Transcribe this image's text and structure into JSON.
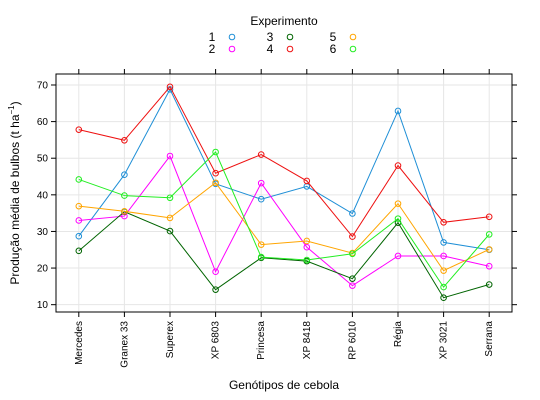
{
  "chart_data": {
    "type": "line",
    "legend_title": "Experimento",
    "legend_position": "top",
    "categories": [
      "Mercedes",
      "Granex 33",
      "Superex",
      "XP 6803",
      "Princesa",
      "XP 8418",
      "RP 6010",
      "Régia",
      "XP 3021",
      "Serrana"
    ],
    "series": [
      {
        "name": "1",
        "color": "#1f8fd6",
        "values": [
          28.7,
          45.5,
          68.8,
          43.0,
          38.8,
          42.3,
          34.9,
          62.9,
          27.0,
          25.0
        ]
      },
      {
        "name": "2",
        "color": "#ff00ff",
        "values": [
          33.0,
          34.2,
          50.6,
          19.0,
          43.2,
          25.7,
          15.2,
          23.3,
          23.3,
          20.5
        ]
      },
      {
        "name": "3",
        "color": "#006400",
        "values": [
          24.7,
          35.4,
          30.1,
          14.1,
          22.8,
          21.9,
          17.1,
          32.4,
          11.9,
          15.5
        ]
      },
      {
        "name": "4",
        "color": "#ee1111",
        "values": [
          57.8,
          54.9,
          69.5,
          45.9,
          51.0,
          43.8,
          28.6,
          48.0,
          32.5,
          34.0
        ]
      },
      {
        "name": "5",
        "color": "#ffa500",
        "values": [
          36.9,
          35.5,
          33.7,
          43.3,
          26.4,
          27.4,
          24.1,
          37.6,
          19.3,
          25.1
        ]
      },
      {
        "name": "6",
        "color": "#22ee22",
        "values": [
          44.2,
          39.8,
          39.2,
          51.7,
          23.0,
          22.2,
          23.9,
          33.5,
          14.8,
          29.2
        ]
      }
    ],
    "xlabel": "Genótipos de cebola",
    "ylabel_main": "Produção média de bulbos (t ha",
    "ylabel_sup": "−1",
    "ylabel_close": ")",
    "yticks": [
      10,
      20,
      30,
      40,
      50,
      60,
      70
    ],
    "ylim": [
      8,
      73
    ],
    "grid": true
  }
}
